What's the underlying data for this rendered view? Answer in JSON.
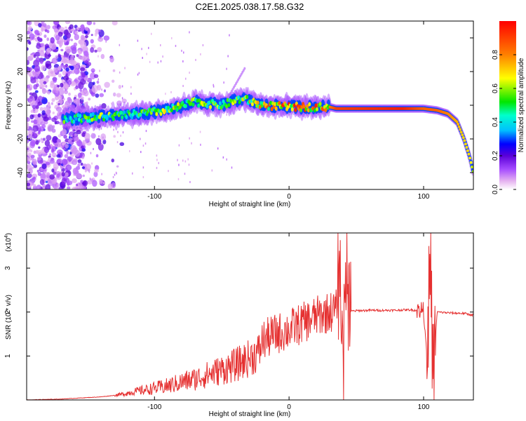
{
  "page": {
    "title": "C2E1.2025.038.17.58.G32"
  },
  "colors": {
    "snr_line": "#e53030",
    "frame": "#000000",
    "colormap": [
      "#ffffff",
      "#e6b3f0",
      "#a64dff",
      "#5a00d9",
      "#0000ff",
      "#00bfff",
      "#00ffcc",
      "#00e600",
      "#ffff00",
      "#ff8000",
      "#ff0000"
    ]
  },
  "chart_data": [
    {
      "type": "heatmap",
      "name": "spectrogram",
      "title": "C2E1.2025.038.17.58.G32",
      "xlabel": "Height of straight line (km)",
      "ylabel": "Frequency (Hz)",
      "xlim": [
        -195,
        137
      ],
      "ylim": [
        -50,
        50
      ],
      "xticks": [
        -100,
        0,
        100
      ],
      "yticks": [
        -40,
        -20,
        0,
        20,
        40
      ],
      "grid": false,
      "colorbar": {
        "label": "Normalized spectral amplitude",
        "range": [
          0,
          1
        ],
        "ticks": [
          "0.0",
          "0.2",
          "0.4",
          "0.6",
          "0.8"
        ],
        "tick_values": [
          0,
          0.2,
          0.4,
          0.6,
          0.8
        ]
      },
      "ridge": {
        "description_points": [
          {
            "x": -165,
            "y": -8,
            "amp": 0.5
          },
          {
            "x": -140,
            "y": -7,
            "amp": 0.55
          },
          {
            "x": -110,
            "y": -5,
            "amp": 0.55
          },
          {
            "x": -90,
            "y": -3,
            "amp": 0.6
          },
          {
            "x": -70,
            "y": 2,
            "amp": 0.6
          },
          {
            "x": -50,
            "y": 0,
            "amp": 0.55
          },
          {
            "x": -35,
            "y": 4,
            "amp": 0.6
          },
          {
            "x": -20,
            "y": 0,
            "amp": 0.75
          },
          {
            "x": 0,
            "y": -1,
            "amp": 0.8
          },
          {
            "x": 30,
            "y": -1,
            "amp": 0.8
          },
          {
            "x": 35,
            "y": -2,
            "amp": 0.9
          },
          {
            "x": 85,
            "y": -2,
            "amp": 0.95
          },
          {
            "x": 100,
            "y": -2,
            "amp": 0.85
          },
          {
            "x": 110,
            "y": -3,
            "amp": 0.85
          },
          {
            "x": 118,
            "y": -5,
            "amp": 0.8
          },
          {
            "x": 125,
            "y": -10,
            "amp": 0.75
          },
          {
            "x": 130,
            "y": -20,
            "amp": 0.7
          },
          {
            "x": 134,
            "y": -30,
            "amp": 0.7
          },
          {
            "x": 137,
            "y": -40,
            "amp": 0.6
          }
        ]
      }
    },
    {
      "type": "line",
      "name": "snr",
      "xlabel": "Height of straight line (km)",
      "ylabel": "SNR (10 * v/v)",
      "y_multiplier_label": "(x10",
      "y_multiplier_exp": "4",
      "y_multiplier_close": ")",
      "xlim": [
        -195,
        137
      ],
      "ylim": [
        0,
        3.8
      ],
      "xticks": [
        -100,
        0,
        100
      ],
      "yticks": [
        1,
        2,
        3
      ],
      "grid": false,
      "series": [
        {
          "color": "#e53030",
          "x": [
            -195,
            -170,
            -140,
            -125,
            -115,
            -100,
            -90,
            -80,
            -70,
            -60,
            -50,
            -40,
            -30,
            -22,
            -20,
            -10,
            0,
            10,
            20,
            30,
            35,
            38,
            40,
            42,
            44,
            46,
            50,
            60,
            70,
            80,
            85,
            90,
            95,
            100,
            103,
            105,
            107,
            110,
            120,
            130,
            137
          ],
          "y": [
            0.0,
            0.02,
            0.07,
            0.12,
            0.18,
            0.25,
            0.3,
            0.38,
            0.45,
            0.55,
            0.65,
            0.75,
            0.9,
            1.05,
            1.3,
            1.45,
            1.55,
            1.7,
            1.85,
            1.95,
            2.0,
            3.0,
            0.5,
            3.5,
            2.2,
            2.02,
            2.03,
            2.04,
            2.04,
            2.04,
            2.05,
            2.05,
            2.04,
            2.05,
            0.8,
            3.8,
            0.4,
            2.0,
            1.98,
            1.97,
            1.93
          ]
        }
      ]
    }
  ]
}
